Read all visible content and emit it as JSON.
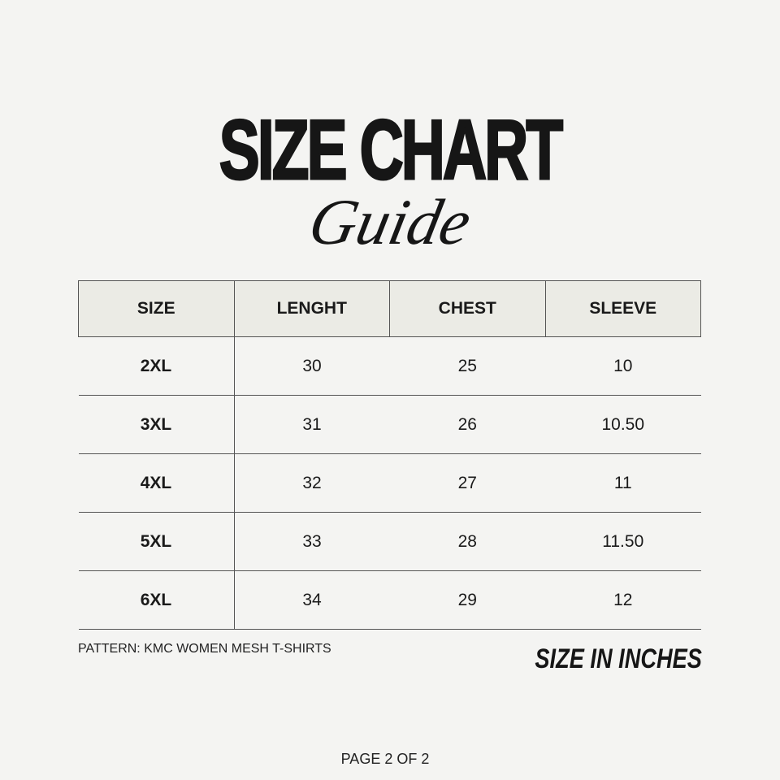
{
  "title": "SIZE CHART",
  "subtitle": "Guide",
  "table": {
    "headers": [
      "SIZE",
      "LENGHT",
      "CHEST",
      "SLEEVE"
    ],
    "rows": [
      [
        "2XL",
        "30",
        "25",
        "10"
      ],
      [
        "3XL",
        "31",
        "26",
        "10.50"
      ],
      [
        "4XL",
        "32",
        "27",
        "11"
      ],
      [
        "5XL",
        "33",
        "28",
        "11.50"
      ],
      [
        "6XL",
        "34",
        "29",
        "12"
      ]
    ]
  },
  "pattern": "PATTERN: KMC WOMEN MESH T-SHIRTS",
  "unit_note": "SIZE IN INCHES",
  "page_indicator": "PAGE 2 OF 2"
}
